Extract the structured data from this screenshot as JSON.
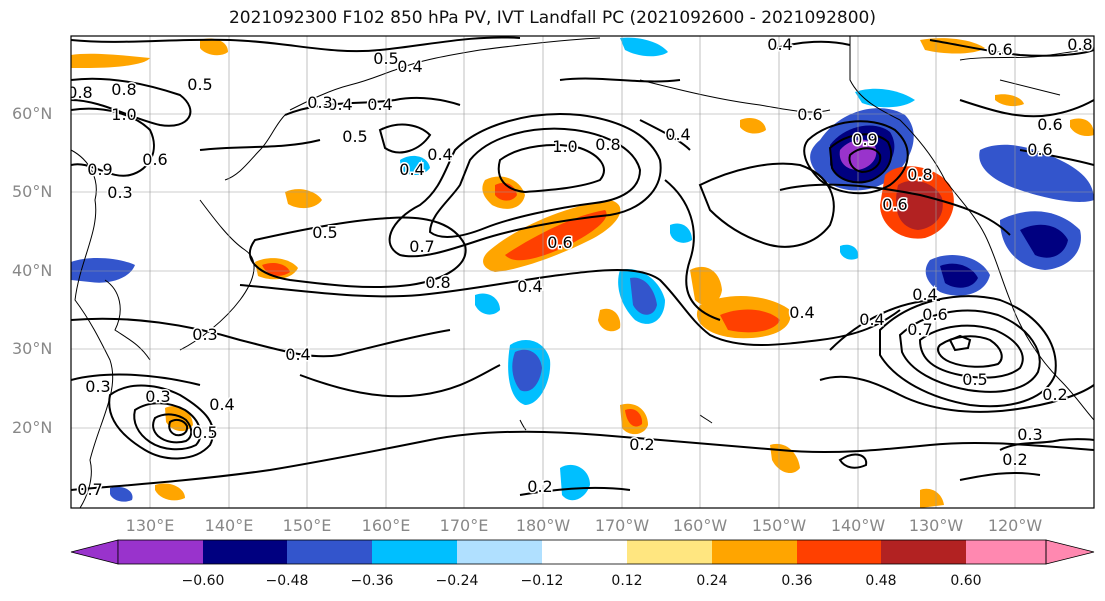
{
  "title": "2021092300 F102 850 hPa PV, IVT Landfall PC (2021092600 - 2021092800)",
  "lat_labels": [
    "60°N",
    "50°N",
    "40°N",
    "30°N",
    "20°N"
  ],
  "lon_labels": [
    "130°E",
    "140°E",
    "150°E",
    "160°E",
    "170°E",
    "180°W",
    "170°W",
    "160°W",
    "150°W",
    "140°W",
    "130°W",
    "120°W"
  ],
  "colorbar": {
    "ticks": [
      "−0.60",
      "−0.48",
      "−0.36",
      "−0.24",
      "−0.12",
      "0.12",
      "0.24",
      "0.36",
      "0.48",
      "0.60"
    ],
    "colors": [
      "#9933cc",
      "#000080",
      "#3355cc",
      "#00bfff",
      "#b0e0ff",
      "#ffffff",
      "#ffe680",
      "#ffa500",
      "#ff4000",
      "#b22222",
      "#ff88b0"
    ]
  },
  "contour_labels": [
    "0.5",
    "0.4",
    "0.4",
    "0.6",
    "0.8",
    "0.8",
    "0.5",
    "0.4",
    "0.3",
    "0.4",
    "0.8",
    "1.0",
    "0.9",
    "0.6",
    "0.5",
    "0.3",
    "0.4",
    "0.4",
    "0.5",
    "0.4",
    "1.0",
    "0.8",
    "0.4",
    "0.6",
    "0.8",
    "0.6",
    "0.9",
    "0.6",
    "0.7",
    "0.8",
    "0.6",
    "0.4",
    "0.4",
    "0.4",
    "0.3",
    "0.4",
    "0.5",
    "0.3",
    "0.3",
    "0.4",
    "0.5",
    "0.2",
    "0.2",
    "0.2",
    "0.2",
    "0.3",
    "0.6",
    "0.6",
    "0.7",
    "0.7"
  ]
}
